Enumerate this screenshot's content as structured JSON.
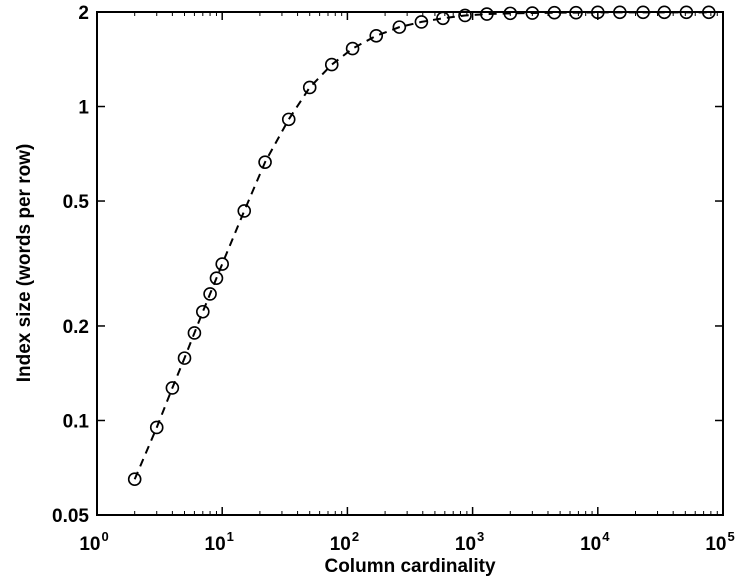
{
  "chart_data": {
    "type": "line",
    "xlabel": "Column cardinality",
    "ylabel": "Index size (words per row)",
    "xscale": "log",
    "yscale": "log",
    "xlim": [
      1,
      100000
    ],
    "ylim": [
      0.05,
      2
    ],
    "grid": false,
    "legend": "none",
    "line_style": "dashed",
    "marker": "circle",
    "x_ticks": [
      {
        "value": 1,
        "base": "10",
        "exp": "0"
      },
      {
        "value": 10,
        "base": "10",
        "exp": "1"
      },
      {
        "value": 100,
        "base": "10",
        "exp": "2"
      },
      {
        "value": 1000,
        "base": "10",
        "exp": "3"
      },
      {
        "value": 10000,
        "base": "10",
        "exp": "4"
      },
      {
        "value": 100000,
        "base": "10",
        "exp": "5"
      }
    ],
    "y_ticks": [
      {
        "value": 0.05,
        "label": "0.05"
      },
      {
        "value": 0.1,
        "label": "0.1"
      },
      {
        "value": 0.2,
        "label": "0.2"
      },
      {
        "value": 0.5,
        "label": "0.5"
      },
      {
        "value": 1,
        "label": "1"
      },
      {
        "value": 2,
        "label": "2"
      }
    ],
    "series": [
      {
        "x": [
          2,
          3,
          4,
          5,
          6,
          7,
          8,
          9,
          10,
          15,
          22,
          34,
          50,
          75,
          110,
          170,
          260,
          390,
          580,
          870,
          1300,
          2000,
          3000,
          4500,
          6700,
          10000,
          15000,
          23000,
          34000,
          51000,
          77000
        ],
        "y": [
          0.065,
          0.095,
          0.127,
          0.158,
          0.19,
          0.222,
          0.253,
          0.284,
          0.315,
          0.465,
          0.665,
          0.91,
          1.15,
          1.36,
          1.53,
          1.68,
          1.79,
          1.86,
          1.91,
          1.95,
          1.97,
          1.98,
          1.985,
          1.99,
          1.99,
          1.995,
          1.995,
          1.995,
          1.995,
          1.995,
          1.995
        ]
      }
    ]
  }
}
